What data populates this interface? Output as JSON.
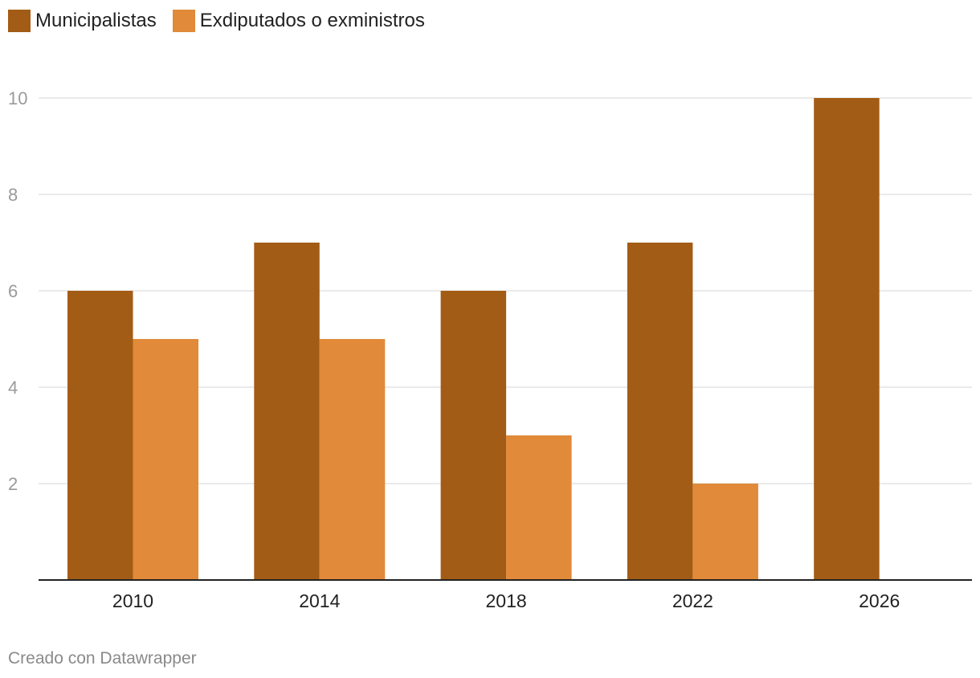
{
  "chart_data": {
    "type": "bar",
    "categories": [
      "2010",
      "2014",
      "2018",
      "2022",
      "2026"
    ],
    "series": [
      {
        "name": "Municipalistas",
        "values": [
          6,
          7,
          6,
          7,
          10
        ],
        "color": "#a35c15"
      },
      {
        "name": "Exdiputados o exministros",
        "values": [
          5,
          5,
          3,
          2,
          null
        ],
        "color": "#e08a3a"
      }
    ],
    "yticks": [
      2,
      4,
      6,
      8,
      10
    ],
    "ylim": [
      0,
      10
    ],
    "grid": true,
    "legend": "top-left",
    "title": "",
    "xlabel": "",
    "ylabel": ""
  },
  "legend": {
    "items": [
      {
        "label": "Municipalistas",
        "color": "#a35c15"
      },
      {
        "label": "Exdiputados o exministros",
        "color": "#e08a3a"
      }
    ]
  },
  "footer": {
    "credit": "Creado con Datawrapper"
  },
  "colors": {
    "gridline": "#e3e3e3",
    "axis": "#222222",
    "ytick": "#9a9a9a",
    "xtick": "#222222"
  }
}
